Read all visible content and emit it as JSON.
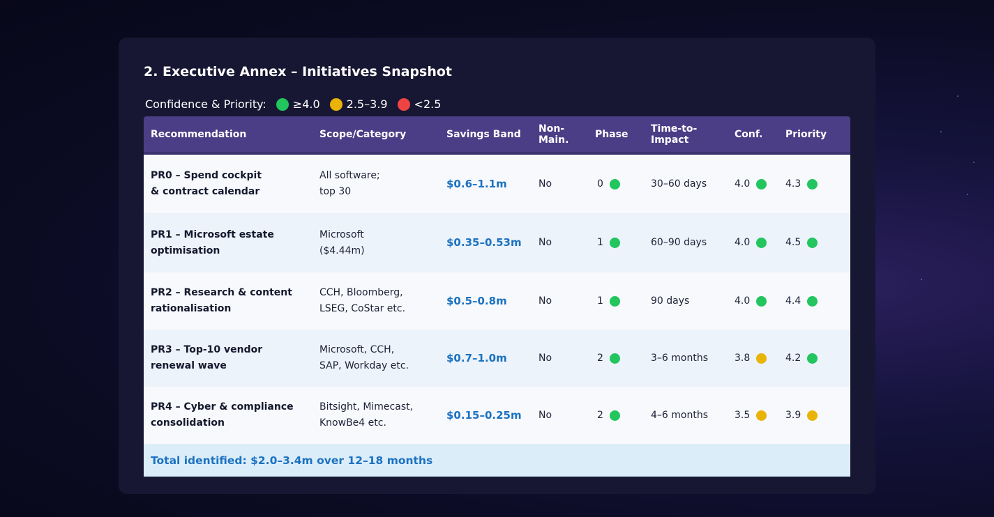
{
  "title": "2. Executive Annex – Initiatives Snapshot",
  "legend": {
    "label": "Confidence & Priority:",
    "items": [
      {
        "label": "≥4.0",
        "color": "#22c55e"
      },
      {
        "label": "2.5–3.9",
        "color": "#eab308"
      },
      {
        "label": "<2.5",
        "color": "#ef4444"
      }
    ]
  },
  "columns": [
    "Recommendation",
    "Scope/Category",
    "Savings Band",
    "Non-\nMain.",
    "Phase",
    "Time-to-\nImpact",
    "Conf.",
    "Priority"
  ],
  "rows": [
    {
      "rec": "PR0 – Spend cockpit\n& contract calendar",
      "scope": "All software;\ntop 30",
      "savings": "$0.6–1.1m",
      "nonmain": "No",
      "phase": "0",
      "phase_status": "green",
      "time": "30–60 days",
      "conf": "4.0",
      "conf_status": "green",
      "priority": "4.3",
      "priority_status": "green"
    },
    {
      "rec": "PR1 – Microsoft estate\noptimisation",
      "scope": "Microsoft\n($4.44m)",
      "savings": "$0.35–0.53m",
      "nonmain": "No",
      "phase": "1",
      "phase_status": "green",
      "time": "60–90 days",
      "conf": "4.0",
      "conf_status": "green",
      "priority": "4.5",
      "priority_status": "green"
    },
    {
      "rec": "PR2 – Research & content\nrationalisation",
      "scope": "CCH, Bloomberg,\nLSEG, CoStar etc.",
      "savings": "$0.5–0.8m",
      "nonmain": "No",
      "phase": "1",
      "phase_status": "green",
      "time": "90 days",
      "conf": "4.0",
      "conf_status": "green",
      "priority": "4.4",
      "priority_status": "green"
    },
    {
      "rec": "PR3 – Top-10 vendor\nrenewal wave",
      "scope": "Microsoft, CCH,\nSAP, Workday etc.",
      "savings": "$0.7–1.0m",
      "nonmain": "No",
      "phase": "2",
      "phase_status": "green",
      "time": "3–6 months",
      "conf": "3.8",
      "conf_status": "amber",
      "priority": "4.2",
      "priority_status": "green"
    },
    {
      "rec": "PR4 – Cyber & compliance\nconsolidation",
      "scope": "Bitsight, Mimecast,\nKnowBe4 etc.",
      "savings": "$0.15–0.25m",
      "nonmain": "No",
      "phase": "2",
      "phase_status": "green",
      "time": "4–6 months",
      "conf": "3.5",
      "conf_status": "amber",
      "priority": "3.9",
      "priority_status": "amber"
    }
  ],
  "total": "Total identified: $2.0–3.4m over 12–18 months",
  "status_colors": {
    "green": "#22c55e",
    "amber": "#eab308",
    "red": "#ef4444"
  }
}
